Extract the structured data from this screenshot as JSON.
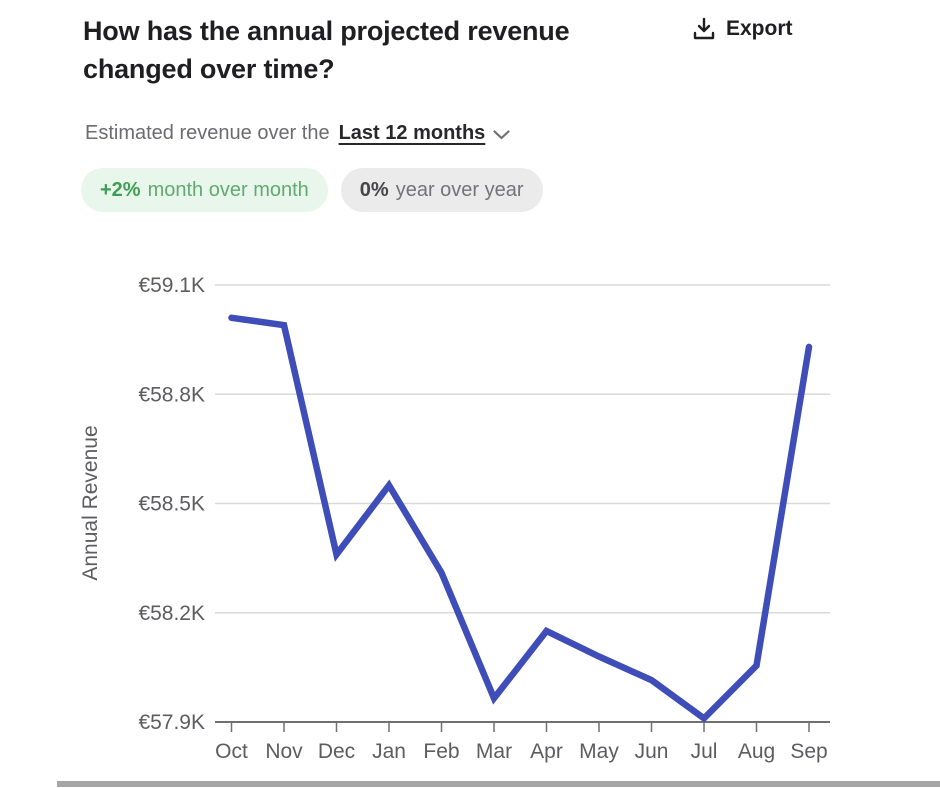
{
  "header": {
    "title": "How has the annual projected revenue changed over time?",
    "export_label": "Export"
  },
  "filter": {
    "prefix": "Estimated revenue over the",
    "selected_period": "Last 12 months"
  },
  "badges": {
    "mom": {
      "value": "+2%",
      "label": "month over month"
    },
    "yoy": {
      "value": "0%",
      "label": "year over year"
    }
  },
  "colors": {
    "line": "#3e4db7",
    "grid": "#d9d9d9",
    "axis": "#707070",
    "tick_label": "#5d5d61",
    "badge_green_bg": "#e9f6eb",
    "badge_gray_bg": "#ebebec"
  },
  "chart_data": {
    "type": "line",
    "title": "",
    "xlabel": "",
    "ylabel": "Annual Revenue",
    "categories": [
      "Oct",
      "Nov",
      "Dec",
      "Jan",
      "Feb",
      "Mar",
      "Apr",
      "May",
      "Jun",
      "Jul",
      "Aug",
      "Sep"
    ],
    "series": [
      {
        "name": "Annual Revenue",
        "values": [
          59010,
          58990,
          58360,
          58550,
          58310,
          57965,
          58150,
          58080,
          58015,
          57910,
          58055,
          58930
        ]
      }
    ],
    "ylim": [
      57900,
      59100
    ],
    "yticks": [
      {
        "label": "€59.1K",
        "value": 59100
      },
      {
        "label": "€58.8K",
        "value": 58800
      },
      {
        "label": "€58.5K",
        "value": 58500
      },
      {
        "label": "€58.2K",
        "value": 58200
      },
      {
        "label": "€57.9K",
        "value": 57900
      }
    ],
    "grid": true,
    "legend": "none"
  }
}
